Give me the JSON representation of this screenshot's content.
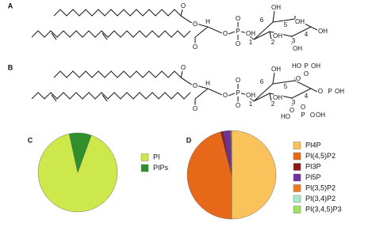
{
  "structures": [
    {
      "panel": "A",
      "labels": [
        "O",
        "O",
        "O",
        "H",
        "O",
        "P",
        "O",
        "OH",
        "O",
        "6",
        "OH",
        "5",
        "OH",
        "OH",
        "4",
        "1",
        "2",
        "OH",
        "3",
        "OH"
      ]
    },
    {
      "panel": "B",
      "labels": [
        "O",
        "O",
        "O",
        "H",
        "O",
        "P",
        "O",
        "OH",
        "O",
        "6",
        "OH",
        "5",
        "HO",
        "P",
        "OH",
        "O",
        "O",
        "4",
        "O",
        "P",
        "OH",
        "1",
        "2",
        "OH",
        "3",
        "O",
        "HO",
        "P",
        "O",
        "O",
        "OH"
      ]
    }
  ],
  "chart_data": [
    {
      "type": "pie",
      "panel": "C",
      "categories": [
        "PI",
        "PIPs"
      ],
      "values": [
        91,
        9
      ],
      "colors": [
        "#cde84a",
        "#2f8f2a"
      ]
    },
    {
      "type": "pie",
      "panel": "D",
      "categories": [
        "PI4P",
        "PI(4,5)P2",
        "PI3P",
        "PI5P",
        "PI(3,5)P2",
        "PI(3,4)P2",
        "PI(3,4,5)P3"
      ],
      "values": [
        50,
        46,
        1,
        2.5,
        0.2,
        0.2,
        0.1
      ],
      "colors": [
        "#f9c25a",
        "#e8681a",
        "#8b1a1a",
        "#7030a0",
        "#f07a20",
        "#a8e8c8",
        "#a0e060"
      ]
    }
  ]
}
